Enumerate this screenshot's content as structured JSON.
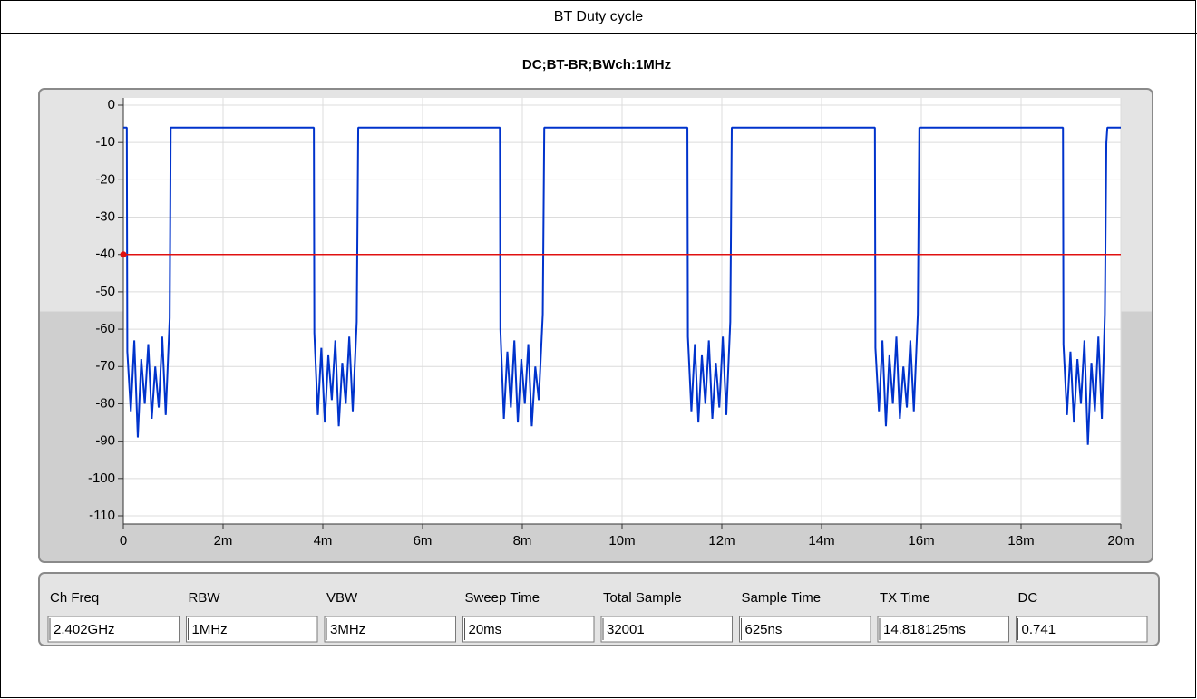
{
  "header": {
    "title": "BT Duty cycle"
  },
  "chart_data": {
    "type": "line",
    "title": "DC;BT-BR;BWch:1MHz",
    "x": [
      0,
      7e-05,
      8e-05,
      0.00015,
      0.00022,
      0.00029,
      0.00036,
      0.00043,
      0.0005,
      0.00057,
      0.00064,
      0.00071,
      0.00078,
      0.00085,
      0.00093,
      0.00095,
      0.00382,
      0.00383,
      0.0039,
      0.00397,
      0.00404,
      0.00411,
      0.00418,
      0.00425,
      0.00432,
      0.00439,
      0.00446,
      0.00453,
      0.0046,
      0.00468,
      0.00471,
      0.00755,
      0.00756,
      0.00763,
      0.0077,
      0.00777,
      0.00784,
      0.00791,
      0.00798,
      0.00805,
      0.00812,
      0.00819,
      0.00826,
      0.00833,
      0.00841,
      0.00844,
      0.01131,
      0.01132,
      0.01139,
      0.01146,
      0.01153,
      0.0116,
      0.01167,
      0.01174,
      0.01181,
      0.01188,
      0.01195,
      0.01202,
      0.01209,
      0.01217,
      0.0122,
      0.01507,
      0.01508,
      0.01515,
      0.01522,
      0.01529,
      0.01536,
      0.01543,
      0.0155,
      0.01557,
      0.01564,
      0.01571,
      0.01578,
      0.01585,
      0.01593,
      0.01596,
      0.01884,
      0.01885,
      0.01892,
      0.01899,
      0.01906,
      0.01913,
      0.0192,
      0.01927,
      0.01934,
      0.01941,
      0.01948,
      0.01955,
      0.01962,
      0.01968,
      0.01971,
      0.01973,
      0.02
    ],
    "series": [
      {
        "color": "#0033cc",
        "values": [
          -6,
          -6,
          -66,
          -82,
          -63,
          -89,
          -68,
          -80,
          -64,
          -84,
          -70,
          -81,
          -62,
          -83,
          -57,
          -6,
          -6,
          -61,
          -83,
          -65,
          -85,
          -67,
          -79,
          -63,
          -86,
          -69,
          -80,
          -62,
          -82,
          -58,
          -6,
          -6,
          -60,
          -84,
          -66,
          -81,
          -63,
          -85,
          -68,
          -80,
          -64,
          -86,
          -70,
          -79,
          -56,
          -6,
          -6,
          -62,
          -82,
          -64,
          -85,
          -67,
          -80,
          -63,
          -84,
          -69,
          -81,
          -62,
          -83,
          -58,
          -6,
          -6,
          -65,
          -82,
          -63,
          -86,
          -67,
          -80,
          -62,
          -84,
          -70,
          -81,
          -63,
          -82,
          -56,
          -6,
          -6,
          -64,
          -83,
          -66,
          -85,
          -68,
          -80,
          -63,
          -91,
          -69,
          -82,
          -62,
          -84,
          -56,
          -10,
          -6,
          -6
        ]
      }
    ],
    "reference_line": {
      "value": -40,
      "color": "#e01010"
    },
    "xlim": [
      0,
      0.02
    ],
    "xticks": [
      0,
      {
        "value": 0.002,
        "label": "2m"
      },
      {
        "value": 0.004,
        "label": "4m"
      },
      {
        "value": 0.006,
        "label": "6m"
      },
      {
        "value": 0.008,
        "label": "8m"
      },
      {
        "value": 0.01,
        "label": "10m"
      },
      {
        "value": 0.012,
        "label": "12m"
      },
      {
        "value": 0.014,
        "label": "14m"
      },
      {
        "value": 0.016,
        "label": "16m"
      },
      {
        "value": 0.018,
        "label": "18m"
      },
      {
        "value": 0.02,
        "label": "20m"
      }
    ],
    "ylim": [
      -110,
      0
    ],
    "yticks": [
      0,
      -10,
      -20,
      -30,
      -40,
      -50,
      -60,
      -70,
      -80,
      -90,
      -100,
      -110
    ],
    "grid": true
  },
  "fields": [
    {
      "label": "Ch Freq",
      "value": "2.402GHz"
    },
    {
      "label": "RBW",
      "value": "1MHz"
    },
    {
      "label": "VBW",
      "value": "3MHz"
    },
    {
      "label": "Sweep Time",
      "value": "20ms"
    },
    {
      "label": "Total Sample",
      "value": "32001"
    },
    {
      "label": "Sample Time",
      "value": "625ns"
    },
    {
      "label": "TX Time",
      "value": "14.818125ms"
    },
    {
      "label": "DC",
      "value": "0.741"
    }
  ]
}
